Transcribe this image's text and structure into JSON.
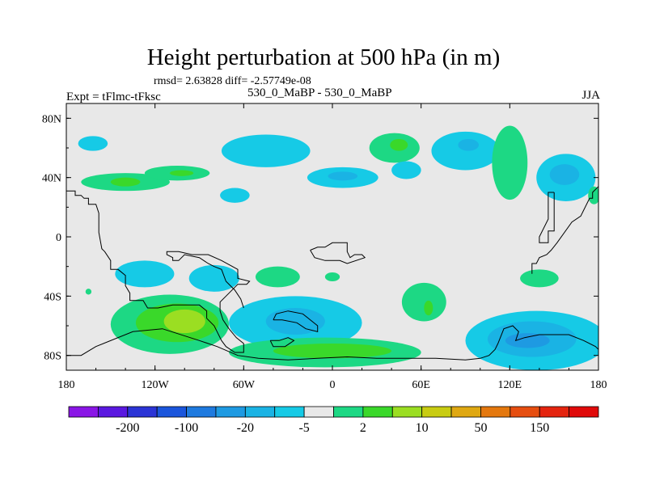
{
  "header": {
    "title": "Height perturbation at 500 hPa (in m)",
    "stats": "rmsd= 2.63828 diff= -2.57749e-08",
    "expt": "Expt = tFlmc-tFksc",
    "runs": "530_0_MaBP - 530_0_MaBP",
    "season": "JJA"
  },
  "chart_data": {
    "type": "heatmap",
    "title": "Height perturbation at 500 hPa (in m)",
    "subtitle": "rmsd= 2.63828 diff= -2.57749e-08",
    "xlabel": "",
    "ylabel": "",
    "xlim": [
      -180,
      180
    ],
    "ylim": [
      -90,
      90
    ],
    "x_ticks": [
      {
        "value": -180,
        "label": "180"
      },
      {
        "value": -120,
        "label": "120W"
      },
      {
        "value": -60,
        "label": "60W"
      },
      {
        "value": 0,
        "label": "0"
      },
      {
        "value": 60,
        "label": "60E"
      },
      {
        "value": 120,
        "label": "120E"
      },
      {
        "value": 180,
        "label": "180"
      }
    ],
    "y_ticks": [
      {
        "value": 80,
        "label": "80N"
      },
      {
        "value": 40,
        "label": "40N"
      },
      {
        "value": 0,
        "label": "0"
      },
      {
        "value": -40,
        "label": "40S"
      },
      {
        "value": -80,
        "label": "80S"
      }
    ],
    "colorbar": {
      "colors": [
        "#8a16e6",
        "#5a18e0",
        "#2b34d6",
        "#1a55dc",
        "#1e7adf",
        "#1e9ae2",
        "#1ab3e4",
        "#16cae6",
        "#e8e8e8",
        "#1dd884",
        "#3ad82a",
        "#9bde22",
        "#c8cc12",
        "#dfa812",
        "#e4780e",
        "#e64e10",
        "#e4240f",
        "#e00a0a"
      ],
      "labels": [
        "-200",
        "-100",
        "-20",
        "-5",
        "2",
        "10",
        "50",
        "150"
      ],
      "label_after_box": [
        1,
        3,
        5,
        7,
        9,
        11,
        13,
        15
      ]
    },
    "features": [
      {
        "lon": -162,
        "lat": 63,
        "rlon": 10,
        "rlat": 5,
        "color": "#16cae6"
      },
      {
        "lon": -140,
        "lat": 37,
        "rlon": 30,
        "rlat": 6,
        "color": "#1dd884"
      },
      {
        "lon": -140,
        "lat": 37,
        "rlon": 10,
        "rlat": 3,
        "color": "#3ad82a"
      },
      {
        "lon": -105,
        "lat": 43,
        "rlon": 22,
        "rlat": 5,
        "color": "#1dd884"
      },
      {
        "lon": -102,
        "lat": 43,
        "rlon": 8,
        "rlat": 2,
        "color": "#3ad82a"
      },
      {
        "lon": -66,
        "lat": 28,
        "rlon": 10,
        "rlat": 5,
        "color": "#16cae6"
      },
      {
        "lon": -45,
        "lat": 58,
        "rlon": 30,
        "rlat": 11,
        "color": "#16cae6"
      },
      {
        "lon": 7,
        "lat": 40,
        "rlon": 24,
        "rlat": 7,
        "color": "#16cae6"
      },
      {
        "lon": 7,
        "lat": 41,
        "rlon": 10,
        "rlat": 3,
        "color": "#1ab3e4"
      },
      {
        "lon": 42,
        "lat": 60,
        "rlon": 17,
        "rlat": 10,
        "color": "#1dd884"
      },
      {
        "lon": 45,
        "lat": 62,
        "rlon": 6,
        "rlat": 4,
        "color": "#3ad82a"
      },
      {
        "lon": 50,
        "lat": 45,
        "rlon": 10,
        "rlat": 6,
        "color": "#16cae6"
      },
      {
        "lon": 90,
        "lat": 58,
        "rlon": 23,
        "rlat": 13,
        "color": "#16cae6"
      },
      {
        "lon": 92,
        "lat": 62,
        "rlon": 7,
        "rlat": 4,
        "color": "#1ab3e4"
      },
      {
        "lon": 120,
        "lat": 50,
        "rlon": 12,
        "rlat": 25,
        "color": "#1dd884"
      },
      {
        "lon": 158,
        "lat": 40,
        "rlon": 20,
        "rlat": 16,
        "color": "#16cae6"
      },
      {
        "lon": 157,
        "lat": 42,
        "rlon": 10,
        "rlat": 7,
        "color": "#1ab3e4"
      },
      {
        "lon": 177,
        "lat": 28,
        "rlon": 4,
        "rlat": 6,
        "color": "#1dd884"
      },
      {
        "lon": -127,
        "lat": -25,
        "rlon": 20,
        "rlat": 9,
        "color": "#16cae6"
      },
      {
        "lon": -80,
        "lat": -28,
        "rlon": 17,
        "rlat": 9,
        "color": "#16cae6"
      },
      {
        "lon": -37,
        "lat": -27,
        "rlon": 15,
        "rlat": 7,
        "color": "#1dd884"
      },
      {
        "lon": 0,
        "lat": -27,
        "rlon": 5,
        "rlat": 3,
        "color": "#1dd884"
      },
      {
        "lon": 140,
        "lat": -28,
        "rlon": 13,
        "rlat": 6,
        "color": "#1dd884"
      },
      {
        "lon": -165,
        "lat": -37,
        "rlon": 2,
        "rlat": 2,
        "color": "#1dd884"
      },
      {
        "lon": -110,
        "lat": -59,
        "rlon": 40,
        "rlat": 20,
        "color": "#1dd884"
      },
      {
        "lon": -105,
        "lat": -58,
        "rlon": 28,
        "rlat": 13,
        "color": "#3ad82a"
      },
      {
        "lon": -100,
        "lat": -57,
        "rlon": 14,
        "rlat": 8,
        "color": "#9bde22"
      },
      {
        "lon": -25,
        "lat": -58,
        "rlon": 45,
        "rlat": 18,
        "color": "#16cae6"
      },
      {
        "lon": -25,
        "lat": -57,
        "rlon": 20,
        "rlat": 9,
        "color": "#1ab3e4"
      },
      {
        "lon": 62,
        "lat": -44,
        "rlon": 15,
        "rlat": 13,
        "color": "#1dd884"
      },
      {
        "lon": 65,
        "lat": -48,
        "rlon": 3,
        "rlat": 5,
        "color": "#3ad82a"
      },
      {
        "lon": -5,
        "lat": -78,
        "rlon": 65,
        "rlat": 10,
        "color": "#1dd884"
      },
      {
        "lon": 0,
        "lat": -77,
        "rlon": 40,
        "rlat": 5,
        "color": "#3ad82a"
      },
      {
        "lon": 138,
        "lat": -70,
        "rlon": 48,
        "rlat": 20,
        "color": "#16cae6"
      },
      {
        "lon": 135,
        "lat": -69,
        "rlon": 30,
        "rlat": 12,
        "color": "#1ab3e4"
      },
      {
        "lon": 132,
        "lat": -70,
        "rlon": 15,
        "rlat": 5,
        "color": "#1e9ae2"
      }
    ],
    "coastlines": [
      {
        "name": "americas",
        "points": [
          [
            -180,
            31
          ],
          [
            -174,
            31
          ],
          [
            -174,
            28
          ],
          [
            -170,
            28
          ],
          [
            -168,
            26
          ],
          [
            -165,
            26
          ],
          [
            -165,
            22
          ],
          [
            -160,
            22
          ],
          [
            -158,
            16
          ],
          [
            -158,
            3
          ],
          [
            -156,
            -8
          ],
          [
            -154,
            -10
          ],
          [
            -150,
            -16
          ],
          [
            -150,
            -22
          ],
          [
            -145,
            -22
          ],
          [
            -140,
            -26
          ],
          [
            -140,
            -33
          ],
          [
            -137,
            -38
          ],
          [
            -137,
            -43
          ],
          [
            -128,
            -43
          ],
          [
            -125,
            -48
          ],
          [
            -118,
            -48
          ],
          [
            -108,
            -46
          ],
          [
            -100,
            -46
          ],
          [
            -90,
            -46
          ],
          [
            -85,
            -50
          ],
          [
            -85,
            -55
          ],
          [
            -80,
            -60
          ],
          [
            -75,
            -70
          ],
          [
            -72,
            -74
          ],
          [
            -66,
            -78
          ],
          [
            -60,
            -78
          ],
          [
            -60,
            -72
          ],
          [
            -65,
            -68
          ],
          [
            -70,
            -62
          ],
          [
            -74,
            -56
          ],
          [
            -76,
            -50
          ],
          [
            -76,
            -44
          ],
          [
            -70,
            -38
          ],
          [
            -64,
            -32
          ],
          [
            -58,
            -32
          ],
          [
            -56,
            -30
          ],
          [
            -64,
            -28
          ],
          [
            -64,
            -22
          ],
          [
            -75,
            -16
          ],
          [
            -84,
            -12
          ],
          [
            -90,
            -12
          ],
          [
            -95,
            -12
          ],
          [
            -104,
            -10
          ],
          [
            -112,
            -10
          ],
          [
            -112,
            -12
          ],
          [
            -108,
            -14
          ],
          [
            -108,
            -16
          ],
          [
            -104,
            -16
          ],
          [
            -100,
            -12
          ],
          [
            -90,
            -14
          ],
          [
            -84,
            -18
          ],
          [
            -80,
            -20
          ],
          [
            -75,
            -22
          ],
          [
            -72,
            -30
          ],
          [
            -66,
            -36
          ],
          [
            -62,
            -42
          ],
          [
            -60,
            -48
          ]
        ]
      },
      {
        "name": "africa",
        "points": [
          [
            -15,
            -9
          ],
          [
            -10,
            -7
          ],
          [
            -5,
            -7
          ],
          [
            0,
            -4
          ],
          [
            5,
            -4
          ],
          [
            10,
            -4
          ],
          [
            10,
            -10
          ],
          [
            12,
            -14
          ],
          [
            15,
            -12
          ],
          [
            20,
            -12
          ],
          [
            22,
            -14
          ],
          [
            10,
            -18
          ],
          [
            5,
            -16
          ],
          [
            -5,
            -16
          ],
          [
            -12,
            -14
          ],
          [
            -15,
            -9
          ]
        ]
      },
      {
        "name": "asia-east",
        "points": [
          [
            180,
            34
          ],
          [
            176,
            30
          ],
          [
            176,
            26
          ],
          [
            174,
            26
          ],
          [
            170,
            18
          ],
          [
            168,
            14
          ],
          [
            162,
            10
          ],
          [
            152,
            -4
          ],
          [
            148,
            -9
          ],
          [
            145,
            -12
          ],
          [
            140,
            -14
          ],
          [
            138,
            -18
          ],
          [
            135,
            -18
          ],
          [
            135,
            -25
          ]
        ]
      },
      {
        "name": "asia-coast",
        "points": [
          [
            150,
            30
          ],
          [
            146,
            30
          ],
          [
            146,
            12
          ],
          [
            140,
            0
          ],
          [
            140,
            -4
          ],
          [
            146,
            -4
          ],
          [
            146,
            4
          ],
          [
            150,
            4
          ],
          [
            150,
            30
          ]
        ]
      },
      {
        "name": "antarctica",
        "points": [
          [
            -180,
            -80
          ],
          [
            -170,
            -80
          ],
          [
            -160,
            -74
          ],
          [
            -135,
            -64
          ],
          [
            -115,
            -62
          ],
          [
            -90,
            -70
          ],
          [
            -78,
            -74
          ],
          [
            -64,
            -80
          ],
          [
            -50,
            -82
          ],
          [
            -30,
            -83
          ],
          [
            -10,
            -82
          ],
          [
            10,
            -81
          ],
          [
            30,
            -82
          ],
          [
            50,
            -82
          ],
          [
            70,
            -82
          ],
          [
            90,
            -83
          ],
          [
            100,
            -82
          ],
          [
            106,
            -80
          ],
          [
            110,
            -76
          ],
          [
            112,
            -72
          ],
          [
            116,
            -62
          ],
          [
            122,
            -60
          ],
          [
            126,
            -64
          ],
          [
            124,
            -70
          ],
          [
            130,
            -68
          ],
          [
            140,
            -66
          ],
          [
            160,
            -66
          ],
          [
            170,
            -70
          ],
          [
            178,
            -74
          ],
          [
            180,
            -76
          ]
        ]
      },
      {
        "name": "ant-peninsula",
        "points": [
          [
            -40,
            -56
          ],
          [
            -34,
            -56
          ],
          [
            -24,
            -58
          ],
          [
            -18,
            -62
          ],
          [
            -10,
            -64
          ],
          [
            -10,
            -60
          ],
          [
            -20,
            -52
          ],
          [
            -30,
            -50
          ],
          [
            -38,
            -52
          ],
          [
            -40,
            -56
          ]
        ]
      },
      {
        "name": "islands",
        "points": [
          [
            -42,
            -70
          ],
          [
            -36,
            -70
          ],
          [
            -30,
            -68
          ],
          [
            -26,
            -70
          ],
          [
            -32,
            -74
          ],
          [
            -40,
            -74
          ],
          [
            -42,
            -70
          ]
        ]
      }
    ]
  }
}
